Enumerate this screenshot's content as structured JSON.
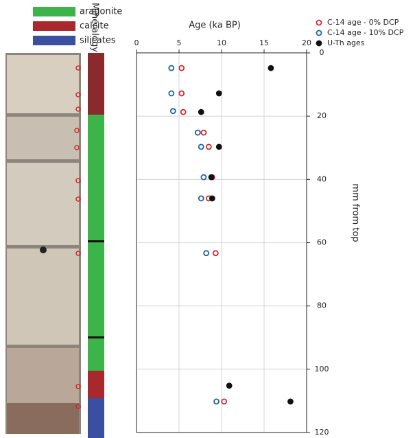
{
  "chart_data": {
    "type": "scatter",
    "xlabel": "Age (ka BP)",
    "ylabel": "mm from top",
    "xlim": [
      0,
      20
    ],
    "xticks": [
      0,
      5,
      10,
      15,
      20
    ],
    "ylim": [
      0,
      120
    ],
    "yticks": [
      0,
      20,
      40,
      60,
      80,
      100,
      120
    ],
    "y_inverted": true,
    "grid": true,
    "legend": "upper right",
    "series": [
      {
        "name": "C-14 age - 0% DCP",
        "color": "#d0262e",
        "marker": "open",
        "x": [
          5.3,
          5.3,
          5.5,
          7.9,
          8.5,
          8.9,
          8.5,
          9.3,
          10.3
        ],
        "values": [
          4.8,
          12.8,
          18.7,
          25.2,
          29.7,
          39.3,
          46,
          63.3,
          110.2
        ]
      },
      {
        "name": "C-14 age - 10% DCP",
        "color": "#1f5fa8",
        "marker": "open",
        "x": [
          4.1,
          4.1,
          4.3,
          7.2,
          7.6,
          7.9,
          7.6,
          8.2,
          9.4
        ],
        "values": [
          4.8,
          12.8,
          18.4,
          25.2,
          29.7,
          39.3,
          46,
          63.3,
          110.2
        ]
      },
      {
        "name": "U-Th ages",
        "color": "#111111",
        "marker": "filled",
        "x": [
          15.8,
          9.7,
          7.6,
          9.7,
          8.8,
          8.9,
          10.9,
          18.1
        ],
        "values": [
          4.8,
          12.8,
          18.7,
          29.7,
          39.3,
          46,
          105.2,
          110.2
        ]
      }
    ]
  },
  "mineralogy": {
    "title": "Mineralogy",
    "items": [
      {
        "name": "aragonite",
        "color": "#3cb44a"
      },
      {
        "name": "calcite",
        "color": "#a8282c"
      },
      {
        "name": "silicates",
        "color": "#3b4fa0"
      }
    ]
  }
}
